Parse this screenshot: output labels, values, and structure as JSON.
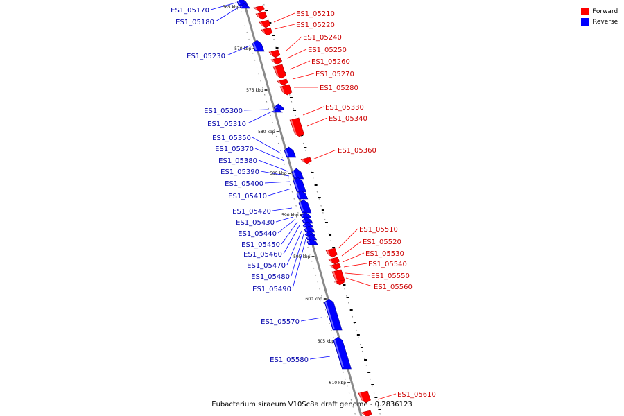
{
  "title": "Eubacterium siraeum V10Sc8a draft genome - 0.2836123",
  "legend": [
    {
      "label": "Forward",
      "color": "#ff0000"
    },
    {
      "label": "Reverse",
      "color": "#0000ff"
    }
  ],
  "colors": {
    "forward": "#ff0000",
    "reverse": "#0000ff",
    "backbone": "#8a8a8a"
  },
  "ticks": [
    "565 kbp",
    "570 kbp",
    "575 kbp",
    "580 kbp",
    "585 kbp",
    "590 kbp",
    "595 kbp",
    "600 kbp",
    "605 kbp",
    "610 kbp"
  ],
  "forward_genes": [
    "ES1_05210",
    "ES1_05220",
    "ES1_05240",
    "ES1_05250",
    "ES1_05260",
    "ES1_05270",
    "ES1_05280",
    "ES1_05330",
    "ES1_05340",
    "ES1_05360",
    "ES1_05510",
    "ES1_05520",
    "ES1_05530",
    "ES1_05540",
    "ES1_05550",
    "ES1_05560",
    "ES1_05610"
  ],
  "reverse_genes": [
    "ES1_05170",
    "ES1_05180",
    "ES1_05230",
    "ES1_05300",
    "ES1_05310",
    "ES1_05350",
    "ES1_05370",
    "ES1_05380",
    "ES1_05390",
    "ES1_05400",
    "ES1_05410",
    "ES1_05420",
    "ES1_05430",
    "ES1_05440",
    "ES1_05450",
    "ES1_05460",
    "ES1_05470",
    "ES1_05480",
    "ES1_05490",
    "ES1_05570",
    "ES1_05580"
  ]
}
